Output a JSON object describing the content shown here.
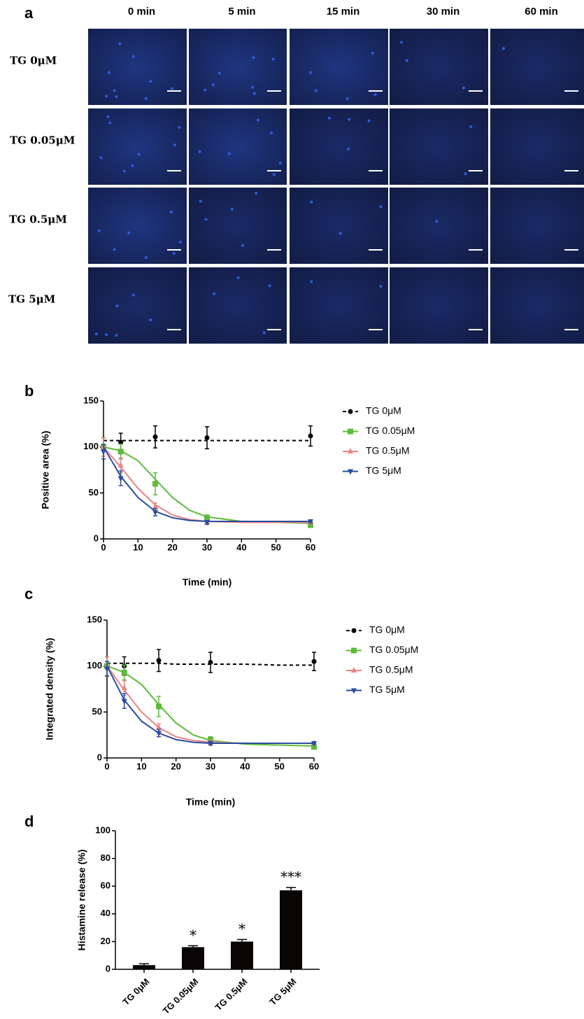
{
  "image_grid": {
    "panel_label": "a",
    "columns": [
      "0 min",
      "5 min",
      "15 min",
      "30 min",
      "60 min"
    ],
    "rows": [
      "TG 0μM",
      "TG 0.05μM",
      "TG 0.5μM",
      "TG 5μM"
    ]
  },
  "chart_data": [
    {
      "type": "line",
      "panel_label": "b",
      "xlabel": "Time (min)",
      "ylabel": "Positive area (%)",
      "x": [
        0,
        5,
        15,
        30,
        60
      ],
      "xlim": [
        0,
        60
      ],
      "ylim": [
        0,
        150
      ],
      "xticks": [
        0,
        10,
        20,
        30,
        40,
        50,
        60
      ],
      "yticks": [
        0,
        50,
        100,
        150
      ],
      "fit_x": [
        0,
        5,
        10,
        15,
        20,
        25,
        30,
        40,
        50,
        60
      ],
      "series": [
        {
          "name": "TG 0μM",
          "color": "#000000",
          "marker": "circle",
          "line_style": "dashed",
          "values": [
            100,
            105,
            111,
            110,
            112
          ],
          "errors": [
            10,
            10,
            12,
            12,
            11
          ],
          "fit": [
            107,
            107,
            107,
            107,
            107,
            107,
            107,
            107,
            107,
            107
          ]
        },
        {
          "name": "TG 0.05μM",
          "color": "#5dbb3a",
          "marker": "square",
          "line_style": "solid",
          "values": [
            100,
            95,
            60,
            23,
            15
          ],
          "errors": [
            10,
            8,
            12,
            3,
            2
          ],
          "fit": [
            100,
            96,
            85,
            65,
            45,
            31,
            24,
            19,
            18,
            17
          ]
        },
        {
          "name": "TG 0.5μM",
          "color": "#e88585",
          "marker": "triangle-up",
          "line_style": "solid",
          "values": [
            100,
            80,
            35,
            18,
            18
          ],
          "errors": [
            10,
            8,
            4,
            2,
            1
          ],
          "fit": [
            100,
            78,
            55,
            37,
            26,
            21,
            19,
            18,
            18,
            18
          ]
        },
        {
          "name": "TG 5μM",
          "color": "#2b4d9e",
          "marker": "triangle-down",
          "line_style": "solid",
          "values": [
            95,
            66,
            29,
            18,
            19
          ],
          "errors": [
            8,
            8,
            4,
            2,
            1
          ],
          "fit": [
            100,
            68,
            45,
            30,
            23,
            20,
            19,
            19,
            19,
            19
          ]
        }
      ]
    },
    {
      "type": "line",
      "panel_label": "c",
      "xlabel": "Time (min)",
      "ylabel": "Integrated density (%)",
      "x": [
        0,
        5,
        15,
        30,
        60
      ],
      "xlim": [
        0,
        60
      ],
      "ylim": [
        0,
        150
      ],
      "xticks": [
        0,
        10,
        20,
        30,
        40,
        50,
        60
      ],
      "yticks": [
        0,
        50,
        100,
        150
      ],
      "fit_x": [
        0,
        5,
        10,
        15,
        20,
        25,
        30,
        40,
        50,
        60
      ],
      "series": [
        {
          "name": "TG 0μM",
          "color": "#000000",
          "marker": "circle",
          "line_style": "dashed",
          "values": [
            100,
            100,
            106,
            104,
            105
          ],
          "errors": [
            10,
            10,
            12,
            11,
            10
          ],
          "fit": [
            103,
            103,
            103,
            103,
            102,
            102,
            102,
            102,
            101,
            101
          ]
        },
        {
          "name": "TG 0.05μM",
          "color": "#5dbb3a",
          "marker": "square",
          "line_style": "solid",
          "values": [
            100,
            93,
            56,
            20,
            12
          ],
          "errors": [
            10,
            8,
            11,
            3,
            2
          ],
          "fit": [
            100,
            93,
            80,
            58,
            38,
            25,
            19,
            15,
            14,
            13
          ]
        },
        {
          "name": "TG 0.5μM",
          "color": "#e88585",
          "marker": "triangle-up",
          "line_style": "solid",
          "values": [
            100,
            76,
            33,
            17,
            16
          ],
          "errors": [
            10,
            8,
            4,
            2,
            1
          ],
          "fit": [
            100,
            74,
            50,
            33,
            23,
            19,
            17,
            16,
            16,
            16
          ]
        },
        {
          "name": "TG 5μM",
          "color": "#2b4d9e",
          "marker": "triangle-down",
          "line_style": "solid",
          "values": [
            97,
            62,
            27,
            16,
            16
          ],
          "errors": [
            8,
            8,
            4,
            2,
            1
          ],
          "fit": [
            100,
            63,
            40,
            27,
            20,
            17,
            16,
            16,
            16,
            16
          ]
        }
      ]
    },
    {
      "type": "bar",
      "panel_label": "d",
      "ylabel": "Histamine release (%)",
      "categories": [
        "TG 0μM",
        "TG 0.05μM",
        "TG 0.5μM",
        "TG 5μM"
      ],
      "values": [
        3,
        16,
        20,
        57
      ],
      "errors": [
        1,
        1,
        1.5,
        2
      ],
      "annotations": [
        null,
        "*",
        "*",
        "***"
      ],
      "color": "#0a0505",
      "ylim": [
        0,
        100
      ],
      "yticks": [
        0,
        20,
        40,
        60,
        80,
        100
      ]
    }
  ]
}
